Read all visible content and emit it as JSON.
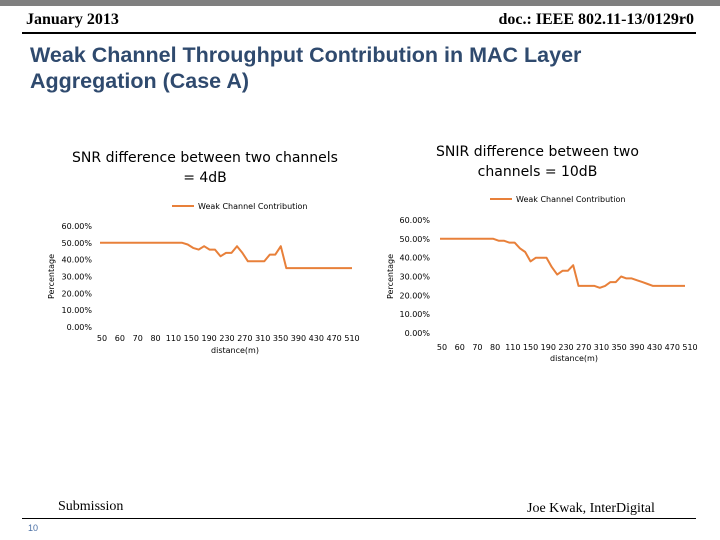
{
  "header": {
    "date": "January 2013",
    "doc_id": "doc.: IEEE 802.11-13/0129r0"
  },
  "slide": {
    "title": "Weak Channel Throughput Contribution in MAC Layer Aggregation  (Case A)"
  },
  "footer": {
    "submission": "Submission",
    "author": "Joe Kwak, InterDigital",
    "page_number": "10"
  },
  "colors": {
    "series": "#e8803a",
    "title": "#2f4a6e"
  },
  "chart_data": [
    {
      "type": "line",
      "title": "SNR difference between two channels = 4dB",
      "xlabel": "distance(m)",
      "ylabel": "Percentage",
      "legend": "top",
      "ylim": [
        0,
        0.6
      ],
      "yticks": [
        "0.00%",
        "10.00%",
        "20.00%",
        "30.00%",
        "40.00%",
        "50.00%",
        "60.00%"
      ],
      "x_tick_labels": [
        "50",
        "60",
        "70",
        "80",
        "110",
        "150",
        "190",
        "230",
        "270",
        "310",
        "350",
        "390",
        "430",
        "470",
        "510"
      ],
      "x": [
        50,
        60,
        70,
        80,
        90,
        100,
        110,
        120,
        130,
        140,
        150,
        160,
        170,
        180,
        190,
        200,
        210,
        220,
        230,
        240,
        250,
        260,
        270,
        280,
        290,
        300,
        310,
        320,
        330,
        340,
        350,
        360,
        370,
        380,
        390,
        400,
        410,
        420,
        430,
        440,
        450,
        460,
        470,
        480,
        490,
        500,
        510
      ],
      "series": [
        {
          "name": "Weak Channel Contribution",
          "values": [
            0.5,
            0.5,
            0.5,
            0.5,
            0.5,
            0.5,
            0.5,
            0.5,
            0.5,
            0.5,
            0.5,
            0.5,
            0.5,
            0.5,
            0.5,
            0.5,
            0.49,
            0.47,
            0.46,
            0.48,
            0.46,
            0.46,
            0.42,
            0.44,
            0.44,
            0.48,
            0.44,
            0.39,
            0.39,
            0.39,
            0.39,
            0.43,
            0.43,
            0.48,
            0.35,
            0.35,
            0.35,
            0.35,
            0.35,
            0.35,
            0.35,
            0.35,
            0.35,
            0.35,
            0.35,
            0.35,
            0.35
          ]
        }
      ]
    },
    {
      "type": "line",
      "title": "SNIR difference between two channels = 10dB",
      "xlabel": "distance(m)",
      "ylabel": "Percentage",
      "legend": "top-right",
      "ylim": [
        0,
        0.6
      ],
      "yticks": [
        "0.00%",
        "10.00%",
        "20.00%",
        "30.00%",
        "40.00%",
        "50.00%",
        "60.00%"
      ],
      "x_tick_labels": [
        "50",
        "60",
        "70",
        "80",
        "110",
        "150",
        "190",
        "230",
        "270",
        "310",
        "350",
        "390",
        "430",
        "470",
        "510"
      ],
      "x": [
        50,
        60,
        70,
        80,
        90,
        100,
        110,
        120,
        130,
        140,
        150,
        160,
        170,
        180,
        190,
        200,
        210,
        220,
        230,
        240,
        250,
        260,
        270,
        280,
        290,
        300,
        310,
        320,
        330,
        340,
        350,
        360,
        370,
        380,
        390,
        400,
        410,
        420,
        430,
        440,
        450,
        460,
        470,
        480,
        490,
        500,
        510
      ],
      "series": [
        {
          "name": "Weak Channel Contribution",
          "values": [
            0.5,
            0.5,
            0.5,
            0.5,
            0.5,
            0.5,
            0.5,
            0.5,
            0.5,
            0.5,
            0.5,
            0.49,
            0.49,
            0.48,
            0.48,
            0.45,
            0.43,
            0.38,
            0.4,
            0.4,
            0.4,
            0.35,
            0.31,
            0.33,
            0.33,
            0.36,
            0.25,
            0.25,
            0.25,
            0.25,
            0.24,
            0.25,
            0.27,
            0.27,
            0.3,
            0.29,
            0.29,
            0.28,
            0.27,
            0.26,
            0.25,
            0.25,
            0.25,
            0.25,
            0.25,
            0.25,
            0.25
          ]
        }
      ]
    }
  ]
}
